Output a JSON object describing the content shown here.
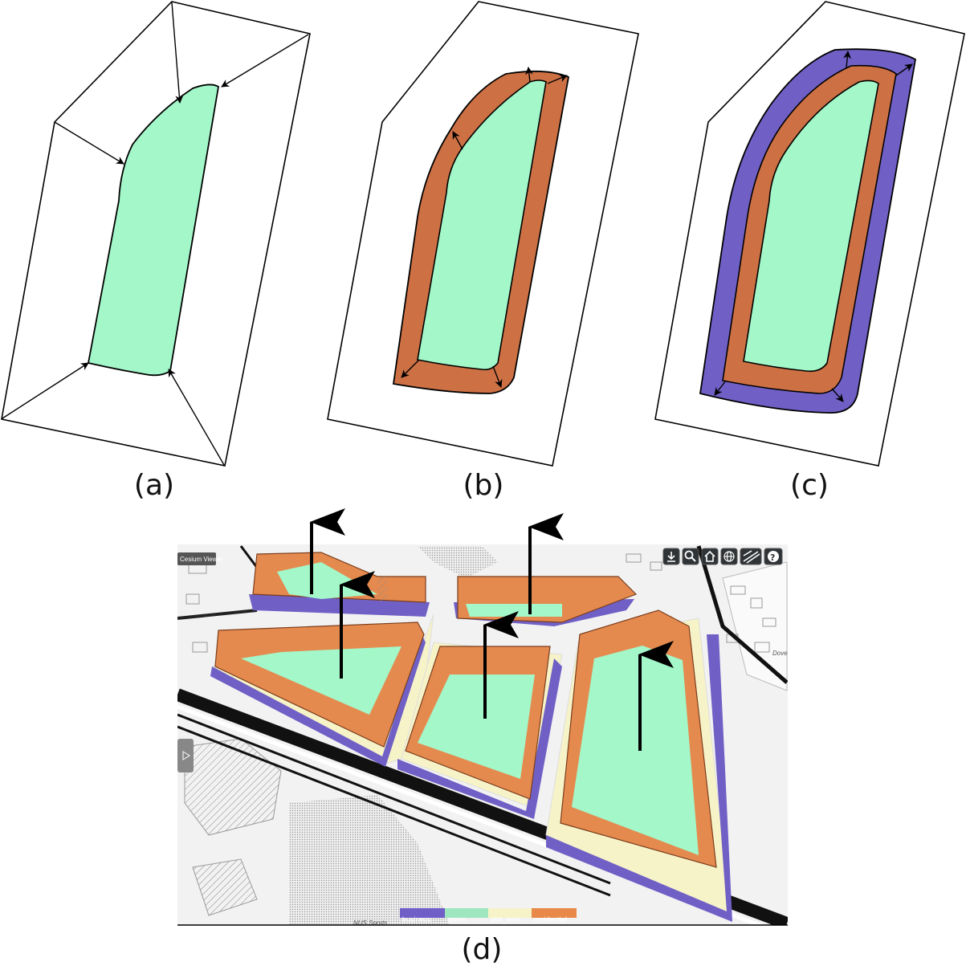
{
  "captions": {
    "a": "(a)",
    "b": "(b)",
    "c": "(c)",
    "d": "(d)"
  },
  "viewer": {
    "title": "Cesium Viewer",
    "toolbar_buttons": [
      "download-icon",
      "search-icon",
      "home-icon",
      "globe-icon",
      "layers-icon",
      "help-icon"
    ],
    "sidebar_toggle": "play-icon",
    "road_labels": [
      "Dove",
      "NUS Sports"
    ],
    "legend": [
      {
        "label": "business",
        "color": "#6f5fc7"
      },
      {
        "label": "green",
        "color": "#9ee6c0"
      },
      {
        "label": "plot_area",
        "color": "#f7f3c8"
      },
      {
        "label": "residential",
        "color": "#e8894a"
      }
    ]
  },
  "colors": {
    "green": "#a3f7c9",
    "residential": "#cd7145",
    "business": "#7060c6",
    "plot_area": "#f7f3c8",
    "residential_3d": "#e58a4f"
  }
}
